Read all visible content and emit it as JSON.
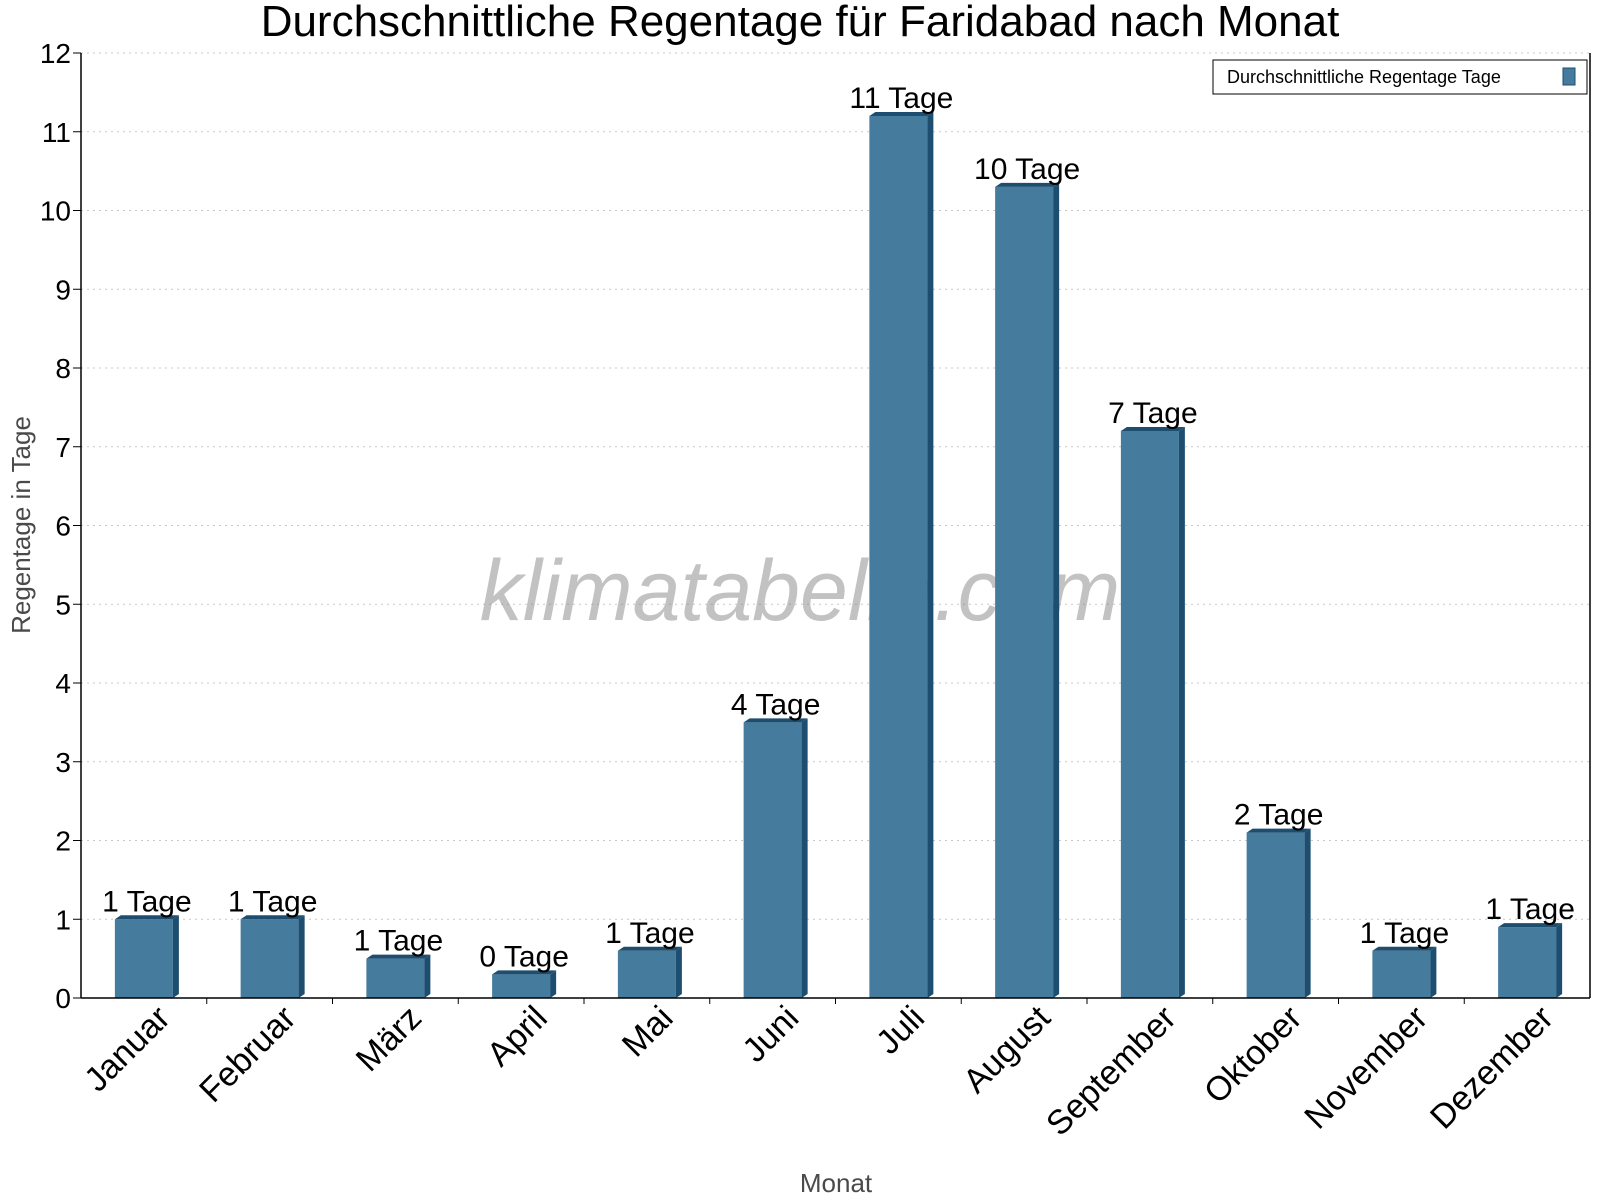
{
  "chart_data": {
    "type": "bar",
    "title": "Durchschnittliche Regentage für Faridabad nach Monat",
    "xlabel": "Monat",
    "ylabel": "Regentage in Tage",
    "ylim": [
      0,
      12
    ],
    "yticks": [
      0,
      1,
      2,
      3,
      4,
      5,
      6,
      7,
      8,
      9,
      10,
      11,
      12
    ],
    "grid": "horizontal-dotted",
    "legend_position": "top-right",
    "categories": [
      "Januar",
      "Februar",
      "März",
      "April",
      "Mai",
      "Juni",
      "Juli",
      "August",
      "September",
      "Oktober",
      "November",
      "Dezember"
    ],
    "series": [
      {
        "name": "Durchschnittliche Regentage Tage",
        "values": [
          1.0,
          1.0,
          0.5,
          0.3,
          0.6,
          3.5,
          11.2,
          10.3,
          7.2,
          2.1,
          0.6,
          0.9
        ],
        "labels": [
          "1 Tage",
          "1 Tage",
          "1 Tage",
          "0 Tage",
          "1 Tage",
          "4 Tage",
          "11 Tage",
          "10 Tage",
          "7 Tage",
          "2 Tage",
          "1 Tage",
          "1 Tage"
        ],
        "color": "#457b9d",
        "edge_color": "#1d4e6f"
      }
    ],
    "watermark": "klimatabelle.com"
  }
}
